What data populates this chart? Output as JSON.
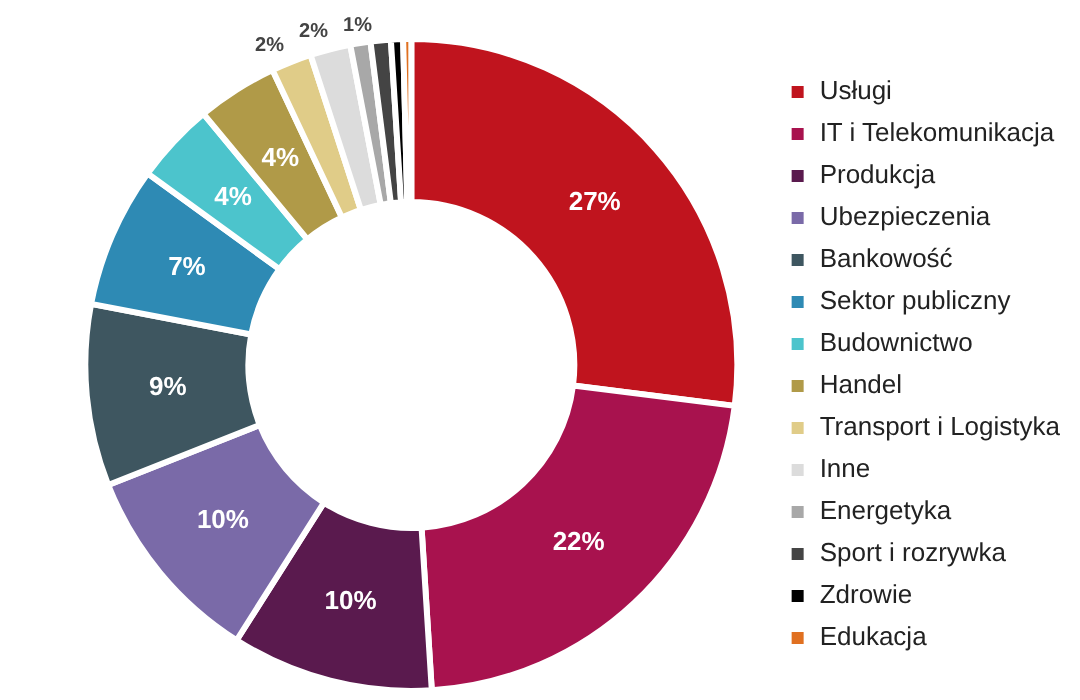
{
  "chart_data": {
    "type": "donut",
    "categories": [
      "Usługi",
      "IT i Telekomunikacja",
      "Produkcja",
      "Ubezpieczenia",
      "Bankowość",
      "Sektor publiczny",
      "Budownictwo",
      "Handel",
      "Transport i Logistyka",
      "Inne",
      "Energetyka",
      "Sport i rozrywka",
      "Zdrowie",
      "Edukacja"
    ],
    "values": [
      27,
      22,
      10,
      10,
      9,
      7,
      4,
      4,
      2,
      2,
      1,
      1,
      0.6,
      0.4
    ],
    "value_labels": [
      "27%",
      "22%",
      "10%",
      "10%",
      "9%",
      "7%",
      "4%",
      "4%",
      "2%",
      "2%",
      "1%",
      null,
      null,
      null
    ],
    "colors": [
      "#c0141e",
      "#a8124e",
      "#5a1a4e",
      "#7a6aa8",
      "#3e5660",
      "#2e8ab4",
      "#4cc4cc",
      "#b09a48",
      "#e0cc88",
      "#dcdcdc",
      "#a8a8a8",
      "#444444",
      "#000000",
      "#e07020"
    ],
    "legend": "right"
  }
}
